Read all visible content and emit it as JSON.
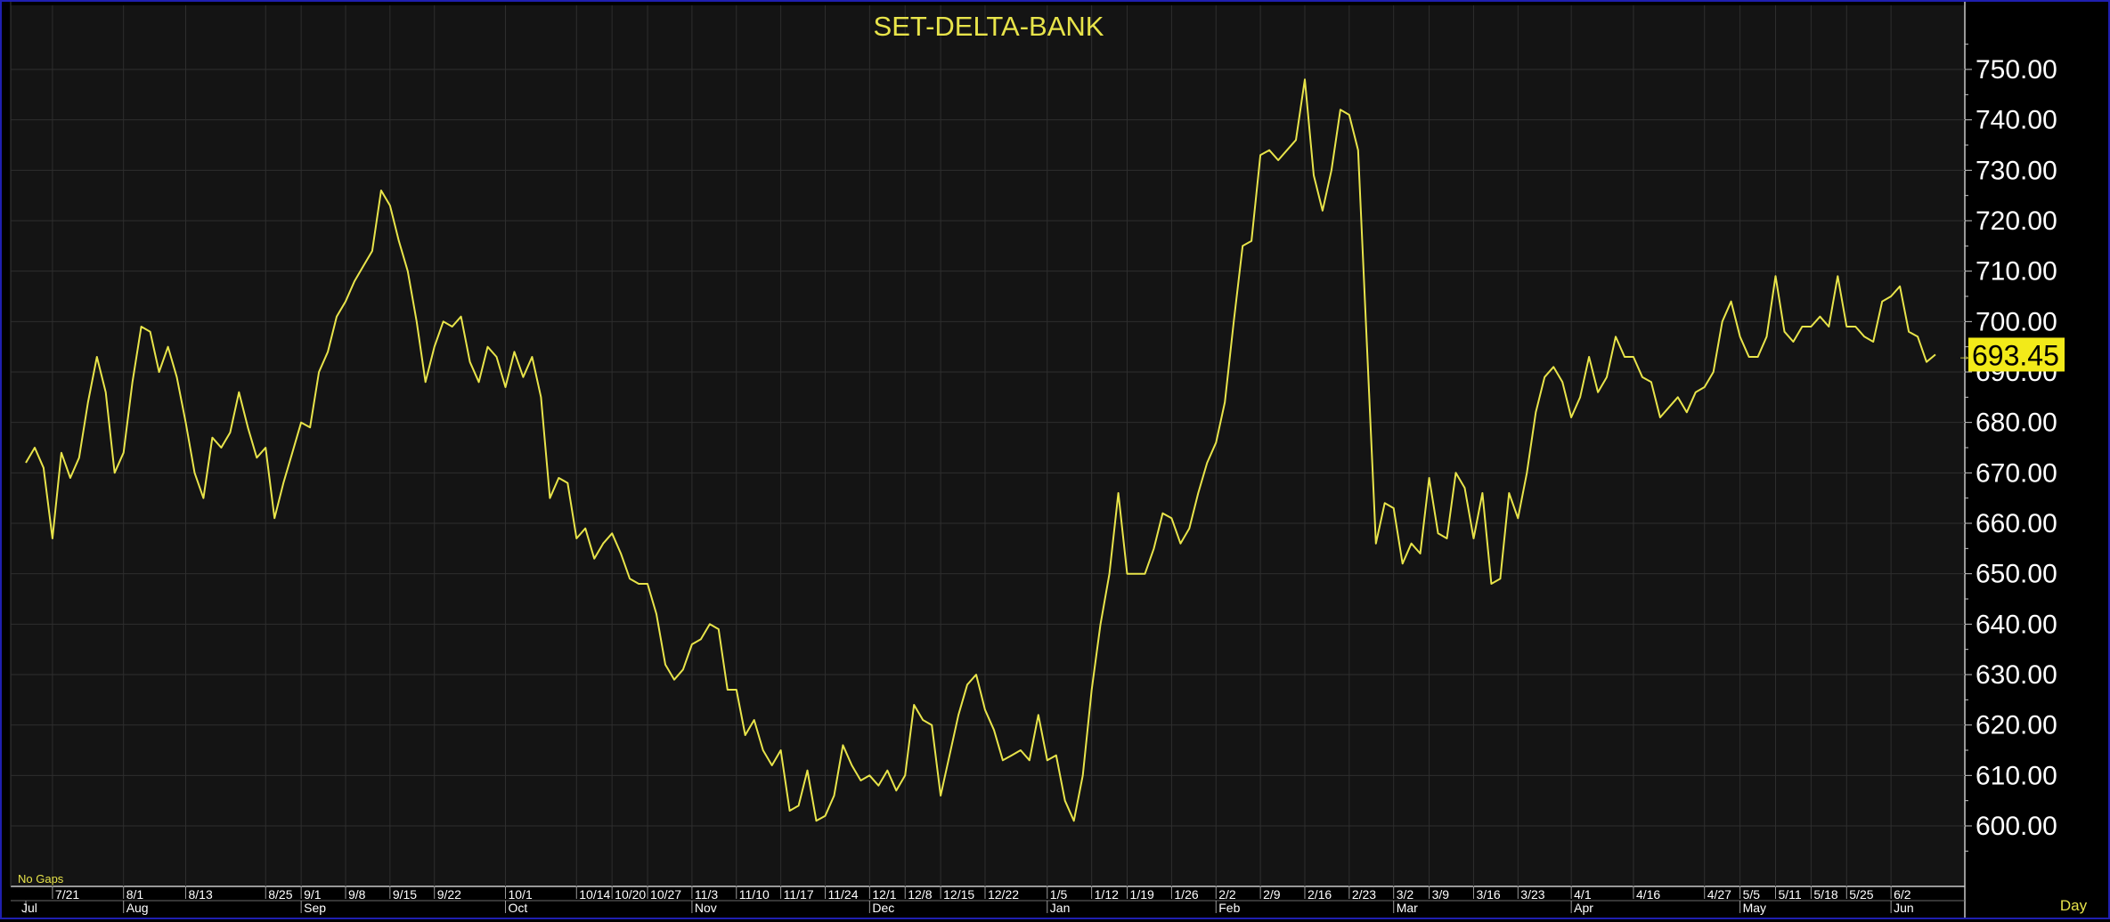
{
  "colors": {
    "background": "#141414",
    "axis_background": "#000000",
    "grid": "#2e2e2e",
    "line": "#e8e44a",
    "title": "#e8e44a",
    "axis_text": "#ffffff",
    "last_value_badge": "#f2ea19",
    "last_value_text": "#000000",
    "frame": "#1f1fb0"
  },
  "labels": {
    "no_gaps": "No  Gaps",
    "period": "Day",
    "last_marker": "→"
  },
  "chart_data": {
    "type": "line",
    "title": "SET-DELTA-BANK",
    "ylim": [
      590,
      760
    ],
    "yticks": [
      600,
      610,
      620,
      630,
      640,
      650,
      660,
      670,
      680,
      690,
      700,
      710,
      720,
      730,
      740,
      750
    ],
    "ytick_labels": [
      "600.00",
      "610.00",
      "620.00",
      "630.00",
      "640.00",
      "650.00",
      "660.00",
      "670.00",
      "680.00",
      "690.00",
      "700.00",
      "710.00",
      "720.00",
      "730.00",
      "740.00",
      "750.00"
    ],
    "last_value": "693.45",
    "grid": true,
    "x_tick_labels": [
      "7/21",
      "8/1",
      "8/13",
      "8/25",
      "9/1",
      "9/8",
      "9/15",
      "9/22",
      "10/1",
      "10/14",
      "10/20",
      "10/27",
      "11/3",
      "11/10",
      "11/17",
      "11/24",
      "12/1",
      "12/8",
      "12/15",
      "12/22",
      "1/5",
      "1/12",
      "1/19",
      "1/26",
      "2/2",
      "2/9",
      "2/16",
      "2/23",
      "3/2",
      "3/9",
      "3/16",
      "3/23",
      "4/1",
      "4/16",
      "4/27",
      "5/5",
      "5/11",
      "5/18",
      "5/25",
      "6/2"
    ],
    "x_tick_index": [
      3,
      11,
      18,
      27,
      31,
      36,
      41,
      46,
      54,
      62,
      66,
      70,
      75,
      80,
      85,
      90,
      95,
      99,
      103,
      108,
      115,
      120,
      124,
      129,
      134,
      139,
      144,
      149,
      154,
      158,
      163,
      168,
      174,
      181,
      189,
      193,
      197,
      201,
      205,
      210
    ],
    "month_labels": [
      "Jul",
      "Aug",
      "Sep",
      "Oct",
      "Nov",
      "Dec",
      "Jan",
      "Feb",
      "Mar",
      "Apr",
      "May",
      "Jun"
    ],
    "month_index": [
      0,
      11,
      31,
      54,
      75,
      95,
      115,
      134,
      154,
      174,
      193,
      210
    ],
    "values": [
      672,
      675,
      671,
      657,
      674,
      669,
      673,
      684,
      693,
      686,
      670,
      674,
      688,
      699,
      698,
      690,
      695,
      689,
      680,
      670,
      665,
      677,
      675,
      678,
      686,
      679,
      673,
      675,
      661,
      668,
      674,
      680,
      679,
      690,
      694,
      701,
      704,
      708,
      711,
      714,
      726,
      723,
      716,
      710,
      700,
      688,
      695,
      700,
      699,
      701,
      692,
      688,
      695,
      693,
      687,
      694,
      689,
      693,
      685,
      665,
      669,
      668,
      657,
      659,
      653,
      656,
      658,
      654,
      649,
      648,
      648,
      642,
      632,
      629,
      631,
      636,
      637,
      640,
      639,
      627,
      627,
      618,
      621,
      615,
      612,
      615,
      603,
      604,
      611,
      601,
      602,
      606,
      616,
      612,
      609,
      610,
      608,
      611,
      607,
      610,
      624,
      621,
      620,
      606,
      614,
      622,
      628,
      630,
      623,
      619,
      613,
      614,
      615,
      613,
      622,
      613,
      614,
      605,
      601,
      610,
      627,
      640,
      650,
      666,
      650,
      650,
      650,
      655,
      662,
      661,
      656,
      659,
      666,
      672,
      676,
      684,
      700,
      715,
      716,
      733,
      734,
      732,
      734,
      736,
      748,
      729,
      722,
      730,
      742,
      741,
      734,
      695,
      656,
      664,
      663,
      652,
      656,
      654,
      669,
      658,
      657,
      670,
      667,
      657,
      666,
      648,
      649,
      666,
      661,
      670,
      682,
      689,
      691,
      688,
      681,
      685,
      693,
      686,
      689,
      697,
      693,
      693,
      689,
      688,
      681,
      683,
      685,
      682,
      686,
      687,
      690,
      700,
      704,
      697,
      693,
      693,
      697,
      709,
      698,
      696,
      699,
      699,
      701,
      699,
      709,
      699,
      699,
      697,
      696,
      704,
      705,
      707,
      698,
      697,
      692,
      693.45
    ]
  }
}
